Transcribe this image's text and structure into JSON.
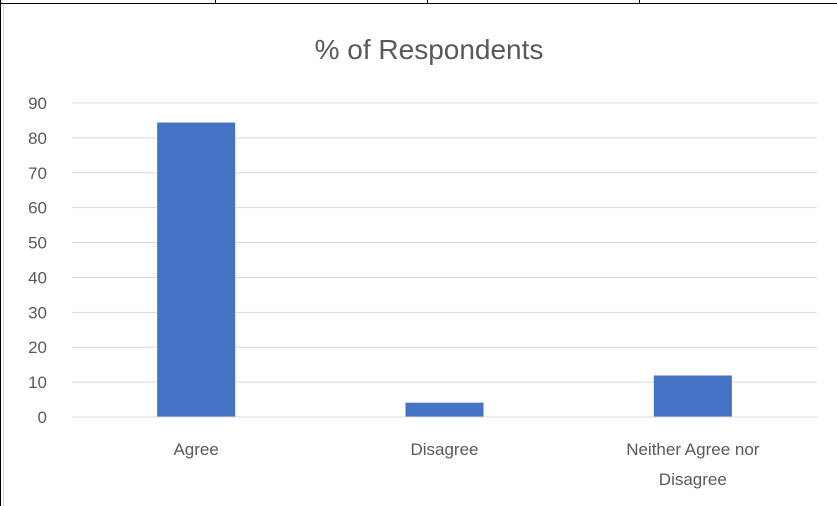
{
  "chart_data": {
    "type": "bar",
    "title": "% of Respondents",
    "categories": [
      "Agree",
      "Disagree",
      "Neither Agree nor Disagree"
    ],
    "category_lines": [
      [
        "Agree"
      ],
      [
        "Disagree"
      ],
      [
        "Neither Agree nor",
        "Disagree"
      ]
    ],
    "values": [
      84.4,
      4.1,
      11.9
    ],
    "ylim": [
      0,
      90
    ],
    "yticks": [
      "0",
      "10",
      "20",
      "30",
      "40",
      "50",
      "60",
      "70",
      "80",
      "90"
    ],
    "xlabel": "",
    "ylabel": "",
    "grid": true,
    "bar_color": "#4472C4",
    "gridline_color": "#D9D9D9",
    "text_color": "#595959",
    "border_color": "#000000"
  }
}
